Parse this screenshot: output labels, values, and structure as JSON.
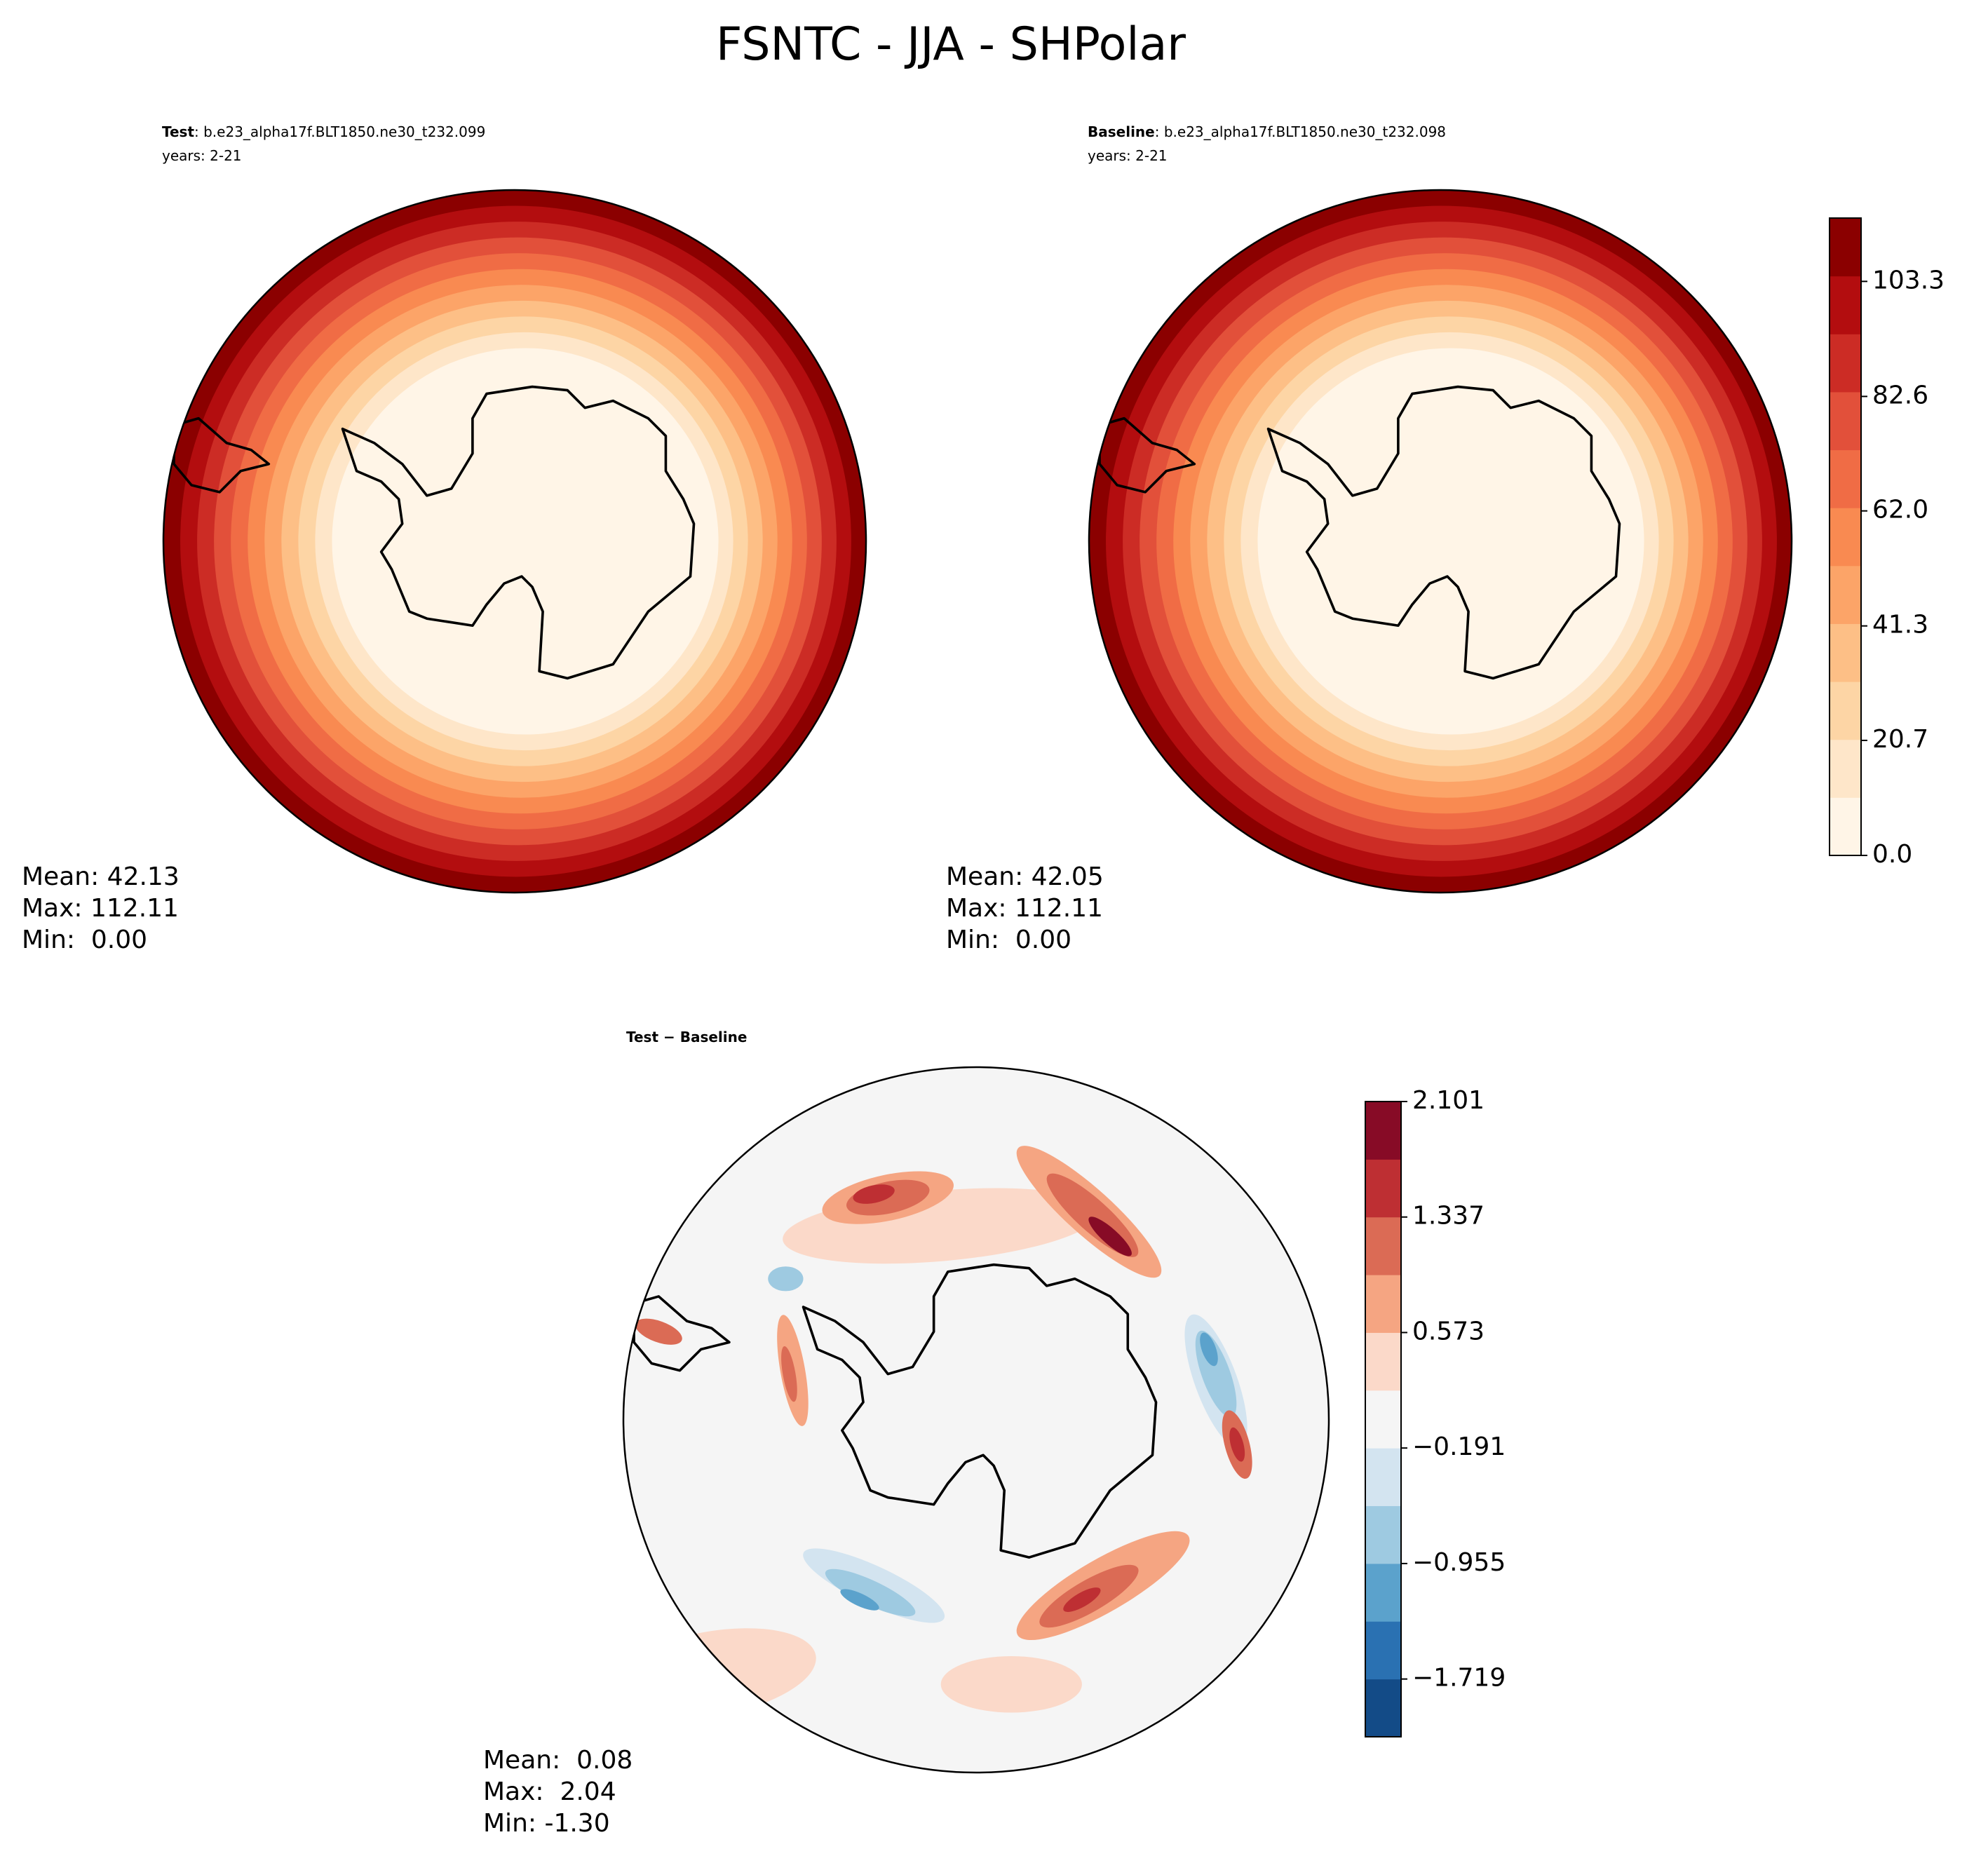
{
  "title": "FSNTC - JJA - SHPolar",
  "chart_data": [
    {
      "type": "contour",
      "label_bold": "Test",
      "label": ": b.e23_alpha17f.BLT1850.ne30_t232.099",
      "subtitle": "years: 2-21",
      "stats": [
        "Mean: 42.13",
        "Max: 112.11",
        "Min:  0.00"
      ]
    },
    {
      "type": "contour",
      "label_bold": "Baseline",
      "label": ": b.e23_alpha17f.BLT1850.ne30_t232.098",
      "subtitle": "years: 2-21",
      "stats": [
        "Mean: 42.05",
        "Max: 112.11",
        "Min:  0.00"
      ],
      "colorbar": {
        "ylim": [
          0,
          114.7
        ],
        "yticks": [
          {
            "value": 0,
            "label": "0.0"
          },
          20.7,
          41.3,
          {
            "value": 62,
            "label": "62.0"
          },
          82.6,
          103.3
        ],
        "colors": [
          "#fff5e7",
          "#fee6c9",
          "#fdd5a5",
          "#fdbf86",
          "#fca468",
          "#f98a51",
          "#f06c45",
          "#e2503a",
          "#cc2c25",
          "#b30d0f",
          "#8b0000"
        ]
      }
    },
    {
      "type": "difference",
      "label_bold": "Test − Baseline",
      "stats": [
        "Mean:  0.08",
        "Max:  2.04",
        "Min: -1.30"
      ],
      "colorbar": {
        "ylim": [
          -2.101,
          2.101
        ],
        "yticks": [
          {
            "value": -1.719,
            "label": "−1.719"
          },
          {
            "value": -0.955,
            "label": "−0.955"
          },
          {
            "value": -0.191,
            "label": "−0.191"
          },
          0.573,
          1.337,
          2.101
        ],
        "colors": [
          "#134b87",
          "#2a71b2",
          "#5ba2cc",
          "#9ecae1",
          "#d3e4f0",
          "#f5f5f5",
          "#fbd9c9",
          "#f5a582",
          "#db6b55",
          "#be2f33",
          "#870b26"
        ]
      }
    }
  ]
}
